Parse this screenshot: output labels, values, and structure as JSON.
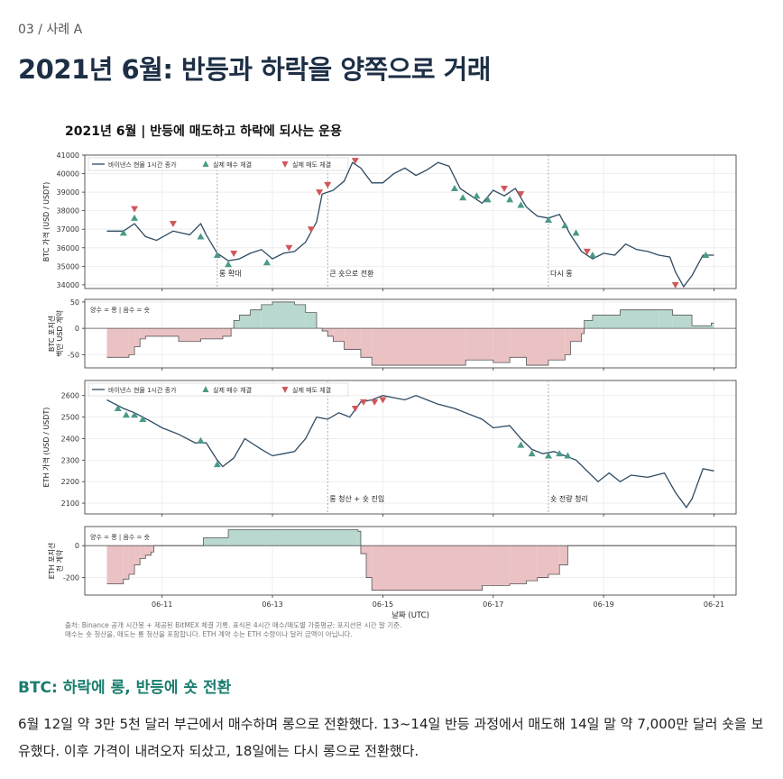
{
  "breadcrumb": "03 / 사례 A",
  "page_title": "2021년 6월: 반등과 하락을 양쪽으로 거래",
  "figure": {
    "title": "2021년 6월 | 반등에 매도하고 하락에 되사는 운용",
    "source_line1": "출처: Binance 공개 시간봉 + 제공된 BitMEX 체결 기록. 표식은 4시간 매수/매도별 가중평균; 포지션은 시간 말 기준.",
    "source_line2": "매수는 숏 청산을, 매도는 롱 청산을 포함합니다. ETH 계약 수는 ETH 수량이나 달러 금액이 아닙니다.",
    "colors": {
      "line": "#2e4a62",
      "buy": "#4a9a86",
      "sell": "#d0575a",
      "pos_fill": "#b9d9d0",
      "neg_fill": "#ebc2c4"
    }
  },
  "section": {
    "heading": "BTC: 하락에 롱, 반등에 숏 전환",
    "paragraph": "6월 12일 약 3만 5천 달러 부근에서 매수하며 롱으로 전환했다. 13~14일 반등 과정에서 매도해 14일 말 약 7,000만 달러 숏을 보유했다. 이후 가격이 내려오자 되샀고, 18일에는 다시 롱으로 전환했다."
  },
  "chart_data": [
    {
      "type": "line",
      "panel": "btc_price",
      "ylabel": "BTC 가격 (USD / USDT)",
      "ylim": [
        33800,
        41000
      ],
      "yticks": [
        "34000",
        "35000",
        "36000",
        "37000",
        "38000",
        "39000",
        "40000",
        "41000"
      ],
      "legend": [
        "바이낸스 현물 1시간 종가",
        "실제 매수 체결",
        "실제 매도 체결"
      ],
      "annotations": [
        {
          "x": 12.0,
          "label": "롱 확대"
        },
        {
          "x": 14.0,
          "label": "큰 숏으로 전환"
        },
        {
          "x": 18.0,
          "label": "다시 롱"
        }
      ],
      "series_points": [
        [
          10.0,
          36900
        ],
        [
          10.3,
          36900
        ],
        [
          10.5,
          37300
        ],
        [
          10.7,
          36600
        ],
        [
          10.9,
          36400
        ],
        [
          11.2,
          36900
        ],
        [
          11.5,
          36700
        ],
        [
          11.7,
          37300
        ],
        [
          11.8,
          36700
        ],
        [
          12.0,
          35700
        ],
        [
          12.2,
          35300
        ],
        [
          12.4,
          35400
        ],
        [
          12.6,
          35700
        ],
        [
          12.8,
          35900
        ],
        [
          13.0,
          35400
        ],
        [
          13.2,
          35700
        ],
        [
          13.4,
          35800
        ],
        [
          13.6,
          36300
        ],
        [
          13.8,
          37400
        ],
        [
          13.9,
          38900
        ],
        [
          14.1,
          39100
        ],
        [
          14.3,
          39600
        ],
        [
          14.45,
          40600
        ],
        [
          14.6,
          40300
        ],
        [
          14.8,
          39500
        ],
        [
          15.0,
          39500
        ],
        [
          15.2,
          40000
        ],
        [
          15.4,
          40300
        ],
        [
          15.6,
          39900
        ],
        [
          15.8,
          40200
        ],
        [
          16.0,
          40600
        ],
        [
          16.2,
          40400
        ],
        [
          16.4,
          39200
        ],
        [
          16.6,
          38800
        ],
        [
          16.8,
          38400
        ],
        [
          17.0,
          39100
        ],
        [
          17.2,
          38800
        ],
        [
          17.4,
          39200
        ],
        [
          17.6,
          38200
        ],
        [
          17.8,
          37700
        ],
        [
          18.0,
          37600
        ],
        [
          18.2,
          37800
        ],
        [
          18.4,
          36700
        ],
        [
          18.6,
          35800
        ],
        [
          18.8,
          35400
        ],
        [
          19.0,
          35700
        ],
        [
          19.2,
          35600
        ],
        [
          19.4,
          36200
        ],
        [
          19.6,
          35900
        ],
        [
          19.8,
          35800
        ],
        [
          20.0,
          35600
        ],
        [
          20.2,
          35500
        ],
        [
          20.3,
          34700
        ],
        [
          20.45,
          33900
        ],
        [
          20.6,
          34500
        ],
        [
          20.8,
          35600
        ],
        [
          21.0,
          35600
        ]
      ],
      "buys": [
        [
          10.3,
          36800
        ],
        [
          10.5,
          37600
        ],
        [
          11.7,
          36600
        ],
        [
          12.0,
          35600
        ],
        [
          12.2,
          35100
        ],
        [
          12.9,
          35200
        ],
        [
          16.3,
          39200
        ],
        [
          16.45,
          38700
        ],
        [
          16.7,
          38800
        ],
        [
          16.9,
          38600
        ],
        [
          17.3,
          38600
        ],
        [
          17.5,
          38300
        ],
        [
          18.0,
          37500
        ],
        [
          18.3,
          37200
        ],
        [
          18.5,
          36800
        ],
        [
          18.8,
          35600
        ],
        [
          20.85,
          35600
        ]
      ],
      "sells": [
        [
          10.5,
          38100
        ],
        [
          11.2,
          37300
        ],
        [
          12.3,
          35700
        ],
        [
          13.3,
          36000
        ],
        [
          13.7,
          37000
        ],
        [
          13.85,
          39000
        ],
        [
          14.0,
          39400
        ],
        [
          14.5,
          40700
        ],
        [
          17.2,
          39200
        ],
        [
          17.5,
          38900
        ],
        [
          18.7,
          35800
        ],
        [
          20.3,
          34000
        ]
      ]
    },
    {
      "type": "area",
      "panel": "btc_position",
      "ylabel": "BTC 포지션 백만 USD 계약",
      "ylim": [
        -75,
        55
      ],
      "yticks": [
        "-50",
        "0",
        "50"
      ],
      "legend_text": "양수 = 롱 | 음수 = 숏",
      "steps": [
        [
          10.0,
          -55
        ],
        [
          10.4,
          -50
        ],
        [
          10.5,
          -35
        ],
        [
          10.6,
          -20
        ],
        [
          10.7,
          -15
        ],
        [
          11.3,
          -25
        ],
        [
          11.7,
          -20
        ],
        [
          12.1,
          -15
        ],
        [
          12.25,
          0
        ],
        [
          12.3,
          15
        ],
        [
          12.4,
          25
        ],
        [
          12.6,
          35
        ],
        [
          12.8,
          45
        ],
        [
          13.0,
          50
        ],
        [
          13.4,
          45
        ],
        [
          13.6,
          30
        ],
        [
          13.8,
          0
        ],
        [
          13.9,
          -5
        ],
        [
          14.0,
          -15
        ],
        [
          14.1,
          -25
        ],
        [
          14.3,
          -40
        ],
        [
          14.6,
          -55
        ],
        [
          14.8,
          -70
        ],
        [
          16.5,
          -60
        ],
        [
          17.0,
          -65
        ],
        [
          17.3,
          -55
        ],
        [
          17.6,
          -70
        ],
        [
          18.0,
          -60
        ],
        [
          18.3,
          -50
        ],
        [
          18.4,
          -25
        ],
        [
          18.6,
          -10
        ],
        [
          18.65,
          15
        ],
        [
          18.8,
          25
        ],
        [
          19.3,
          35
        ],
        [
          20.0,
          35
        ],
        [
          20.25,
          25
        ],
        [
          20.6,
          5
        ],
        [
          20.95,
          10
        ],
        [
          21.0,
          10
        ]
      ]
    },
    {
      "type": "line",
      "panel": "eth_price",
      "ylabel": "ETH 가격 (USD / USDT)",
      "ylim": [
        2050,
        2670
      ],
      "yticks": [
        "2100",
        "2200",
        "2300",
        "2400",
        "2500",
        "2600"
      ],
      "legend": [
        "바이낸스 현물 1시간 종가",
        "실제 매수 체결",
        "실제 매도 체결"
      ],
      "annotations": [
        {
          "x": 14.0,
          "label": "롱 청산 + 숏 진입"
        },
        {
          "x": 18.0,
          "label": "숏 전량 청리"
        }
      ],
      "series_points": [
        [
          10.0,
          2580
        ],
        [
          10.3,
          2540
        ],
        [
          10.5,
          2520
        ],
        [
          10.8,
          2480
        ],
        [
          11.0,
          2450
        ],
        [
          11.3,
          2420
        ],
        [
          11.6,
          2380
        ],
        [
          11.8,
          2380
        ],
        [
          12.0,
          2300
        ],
        [
          12.1,
          2270
        ],
        [
          12.3,
          2310
        ],
        [
          12.5,
          2400
        ],
        [
          12.8,
          2350
        ],
        [
          13.0,
          2320
        ],
        [
          13.2,
          2330
        ],
        [
          13.4,
          2340
        ],
        [
          13.6,
          2400
        ],
        [
          13.8,
          2500
        ],
        [
          14.0,
          2490
        ],
        [
          14.2,
          2520
        ],
        [
          14.4,
          2500
        ],
        [
          14.6,
          2570
        ],
        [
          14.8,
          2580
        ],
        [
          15.0,
          2600
        ],
        [
          15.2,
          2590
        ],
        [
          15.4,
          2580
        ],
        [
          15.6,
          2600
        ],
        [
          15.8,
          2580
        ],
        [
          16.0,
          2560
        ],
        [
          16.3,
          2540
        ],
        [
          16.5,
          2520
        ],
        [
          16.8,
          2490
        ],
        [
          17.0,
          2450
        ],
        [
          17.3,
          2460
        ],
        [
          17.5,
          2400
        ],
        [
          17.7,
          2350
        ],
        [
          17.9,
          2330
        ],
        [
          18.1,
          2340
        ],
        [
          18.3,
          2320
        ],
        [
          18.5,
          2300
        ],
        [
          18.7,
          2250
        ],
        [
          18.9,
          2200
        ],
        [
          19.1,
          2240
        ],
        [
          19.3,
          2200
        ],
        [
          19.5,
          2230
        ],
        [
          19.8,
          2220
        ],
        [
          20.1,
          2240
        ],
        [
          20.3,
          2150
        ],
        [
          20.5,
          2080
        ],
        [
          20.6,
          2120
        ],
        [
          20.8,
          2260
        ],
        [
          21.0,
          2250
        ]
      ],
      "buys": [
        [
          10.2,
          2540
        ],
        [
          10.35,
          2510
        ],
        [
          10.5,
          2510
        ],
        [
          10.65,
          2490
        ],
        [
          11.7,
          2390
        ],
        [
          12.0,
          2280
        ],
        [
          17.5,
          2370
        ],
        [
          17.7,
          2330
        ],
        [
          18.0,
          2320
        ],
        [
          18.2,
          2330
        ],
        [
          18.35,
          2320
        ]
      ],
      "sells": [
        [
          14.5,
          2540
        ],
        [
          14.65,
          2570
        ],
        [
          14.85,
          2570
        ],
        [
          15.0,
          2580
        ]
      ]
    },
    {
      "type": "area",
      "panel": "eth_position",
      "ylabel": "ETH 포지션 천 계약",
      "ylim": [
        -310,
        120
      ],
      "yticks": [
        "-200",
        "0"
      ],
      "legend_text": "양수 = 롱 | 음수 = 숏",
      "steps": [
        [
          10.0,
          -240
        ],
        [
          10.3,
          -210
        ],
        [
          10.4,
          -180
        ],
        [
          10.5,
          -120
        ],
        [
          10.6,
          -80
        ],
        [
          10.7,
          -60
        ],
        [
          10.8,
          -40
        ],
        [
          10.85,
          0
        ],
        [
          11.75,
          50
        ],
        [
          12.2,
          100
        ],
        [
          14.55,
          90
        ],
        [
          14.6,
          -50
        ],
        [
          14.7,
          -200
        ],
        [
          14.8,
          -280
        ],
        [
          16.8,
          -250
        ],
        [
          17.3,
          -240
        ],
        [
          17.6,
          -220
        ],
        [
          17.8,
          -200
        ],
        [
          18.0,
          -180
        ],
        [
          18.2,
          -120
        ],
        [
          18.35,
          0
        ],
        [
          21.0,
          0
        ]
      ]
    }
  ],
  "x_axis": {
    "label": "날짜 (UTC)",
    "ticks": [
      "06-11",
      "06-13",
      "06-15",
      "06-17",
      "06-19",
      "06-21"
    ]
  }
}
